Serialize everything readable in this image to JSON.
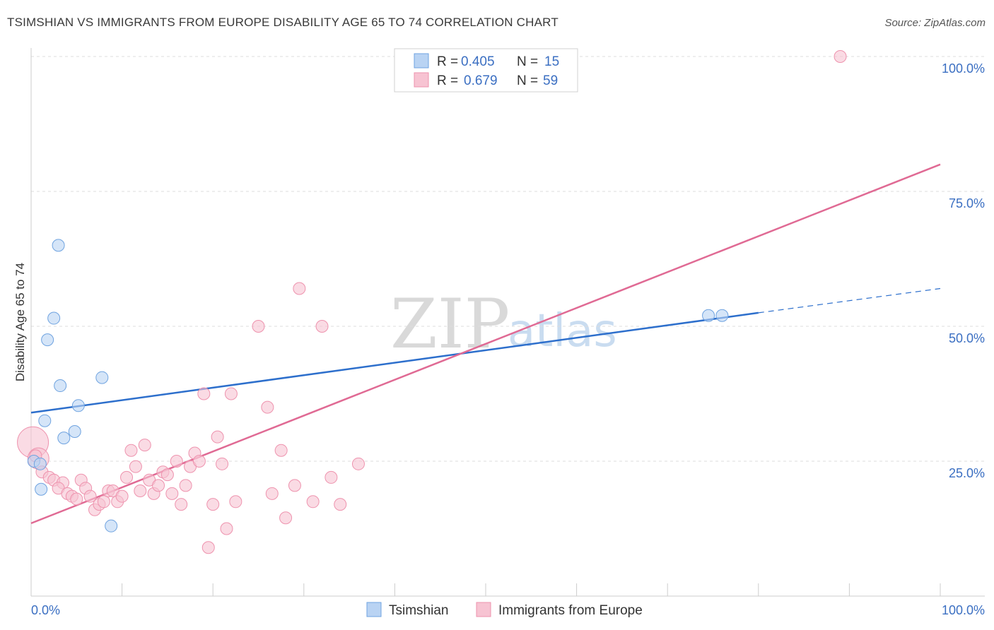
{
  "title": "TSIMSHIAN VS IMMIGRANTS FROM EUROPE DISABILITY AGE 65 TO 74 CORRELATION CHART",
  "source": "Source: ZipAtlas.com",
  "watermark": {
    "zip": "ZIP",
    "atlas": "atlas"
  },
  "chart_data": {
    "type": "scatter",
    "title": "TSIMSHIAN VS IMMIGRANTS FROM EUROPE DISABILITY AGE 65 TO 74 CORRELATION CHART",
    "xlabel": "",
    "ylabel": "Disability Age 65 to 74",
    "xlim": [
      0,
      100
    ],
    "ylim": [
      0,
      100
    ],
    "x_tick_labels": [
      "0.0%",
      "100.0%"
    ],
    "y_ticks": [
      25,
      50,
      75,
      100
    ],
    "y_tick_labels": [
      "25.0%",
      "50.0%",
      "75.0%",
      "100.0%"
    ],
    "grid": true,
    "legend": [
      {
        "r_label": "R =",
        "r_value": "0.405",
        "n_label": "N =",
        "n_value": "15"
      },
      {
        "r_label": "R =",
        "r_value": "0.679",
        "n_label": "N =",
        "n_value": "59"
      }
    ],
    "series": [
      {
        "name": "Tsimshian",
        "color": "#6fa3e0",
        "fill": "#b9d3f3",
        "line_color": "#2d6fcc",
        "trend": {
          "x0": 0,
          "y0": 34,
          "x1": 80,
          "y1": 52.5,
          "dash_to_x": 100,
          "dash_to_y": 57
        },
        "points": [
          [
            3,
            65
          ],
          [
            2.5,
            51.5
          ],
          [
            1.8,
            47.5
          ],
          [
            3.2,
            39
          ],
          [
            7.8,
            40.5
          ],
          [
            5.2,
            35.3
          ],
          [
            1.5,
            32.5
          ],
          [
            3.6,
            29.3
          ],
          [
            4.8,
            30.5
          ],
          [
            0.3,
            25
          ],
          [
            1,
            24.5
          ],
          [
            1.1,
            19.8
          ],
          [
            8.8,
            13
          ],
          [
            74.5,
            52
          ],
          [
            76,
            52
          ]
        ]
      },
      {
        "name": "Immigrants from Europe",
        "color": "#ee93ae",
        "fill": "#f7c3d2",
        "line_color": "#e06a94",
        "trend": {
          "x0": 0,
          "y0": 13.5,
          "x1": 100,
          "y1": 80
        },
        "points": [
          [
            0.2,
            28.5
          ],
          [
            0.8,
            25.5
          ],
          [
            1.2,
            23
          ],
          [
            2,
            22
          ],
          [
            2.5,
            21.5
          ],
          [
            3.5,
            21
          ],
          [
            3,
            20
          ],
          [
            4,
            19
          ],
          [
            4.5,
            18.5
          ],
          [
            5,
            18
          ],
          [
            5.5,
            21.5
          ],
          [
            6,
            20
          ],
          [
            6.5,
            18.5
          ],
          [
            7,
            16
          ],
          [
            7.5,
            17
          ],
          [
            8,
            17.5
          ],
          [
            8.5,
            19.5
          ],
          [
            9,
            19.5
          ],
          [
            9.5,
            17.5
          ],
          [
            10,
            18.5
          ],
          [
            10.5,
            22
          ],
          [
            11,
            27
          ],
          [
            11.5,
            24
          ],
          [
            12,
            19.5
          ],
          [
            12.5,
            28
          ],
          [
            13,
            21.5
          ],
          [
            13.5,
            19
          ],
          [
            14,
            20.5
          ],
          [
            14.5,
            23
          ],
          [
            15,
            22.5
          ],
          [
            15.5,
            19
          ],
          [
            16,
            25
          ],
          [
            16.5,
            17
          ],
          [
            17,
            20.5
          ],
          [
            17.5,
            24
          ],
          [
            18,
            26.5
          ],
          [
            18.5,
            25
          ],
          [
            19,
            37.5
          ],
          [
            19.5,
            9
          ],
          [
            20,
            17
          ],
          [
            20.5,
            29.5
          ],
          [
            21,
            24.5
          ],
          [
            21.5,
            12.5
          ],
          [
            22,
            37.5
          ],
          [
            22.5,
            17.5
          ],
          [
            25,
            50
          ],
          [
            26,
            35
          ],
          [
            26.5,
            19
          ],
          [
            27.5,
            27
          ],
          [
            28,
            14.5
          ],
          [
            29,
            20.5
          ],
          [
            29.5,
            57
          ],
          [
            31,
            17.5
          ],
          [
            32,
            50
          ],
          [
            33,
            22
          ],
          [
            34,
            17
          ],
          [
            36,
            24.5
          ],
          [
            89,
            100
          ],
          [
            0.5,
            26
          ]
        ]
      }
    ]
  },
  "bottom_legend": [
    {
      "label": "Tsimshian"
    },
    {
      "label": "Immigrants from Europe"
    }
  ],
  "colors": {
    "tsimshian_fill": "#b9d3f3",
    "tsimshian_stroke": "#6fa3e0",
    "immigrants_fill": "#f7c3d2",
    "immigrants_stroke": "#ee93ae",
    "axis_text": "#3b6fc2"
  }
}
